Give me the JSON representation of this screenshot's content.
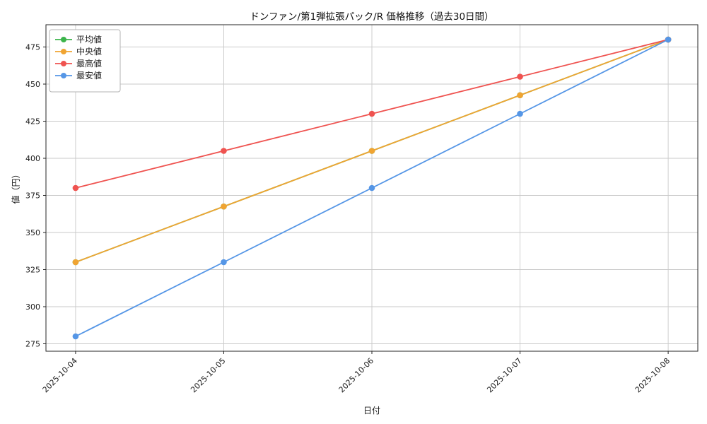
{
  "chart_data": {
    "type": "line",
    "title": "ドンファン/第1弾拡張パック/R 価格推移（過去30日間）",
    "xlabel": "日付",
    "ylabel": "値（円）",
    "categories": [
      "2025-10-04",
      "2025-10-05",
      "2025-10-06",
      "2025-10-07",
      "2025-10-08"
    ],
    "series": [
      {
        "name": "平均値",
        "color": "#3cb44b",
        "values": [
          330,
          367.5,
          405,
          442.5,
          480
        ]
      },
      {
        "name": "中央値",
        "color": "#f0a432",
        "values": [
          330,
          367.5,
          405,
          442.5,
          480
        ]
      },
      {
        "name": "最高値",
        "color": "#ef5350",
        "values": [
          380,
          405,
          430,
          455,
          480
        ]
      },
      {
        "name": "最安値",
        "color": "#5596e6",
        "values": [
          280,
          330,
          380,
          430,
          480
        ]
      }
    ],
    "yticks": [
      275,
      300,
      325,
      350,
      375,
      400,
      425,
      450,
      475
    ],
    "ylim": [
      270,
      490
    ],
    "grid": true,
    "legend_position": "top-left",
    "grid_color": "#c9c9c9",
    "axis_color": "#262626"
  }
}
